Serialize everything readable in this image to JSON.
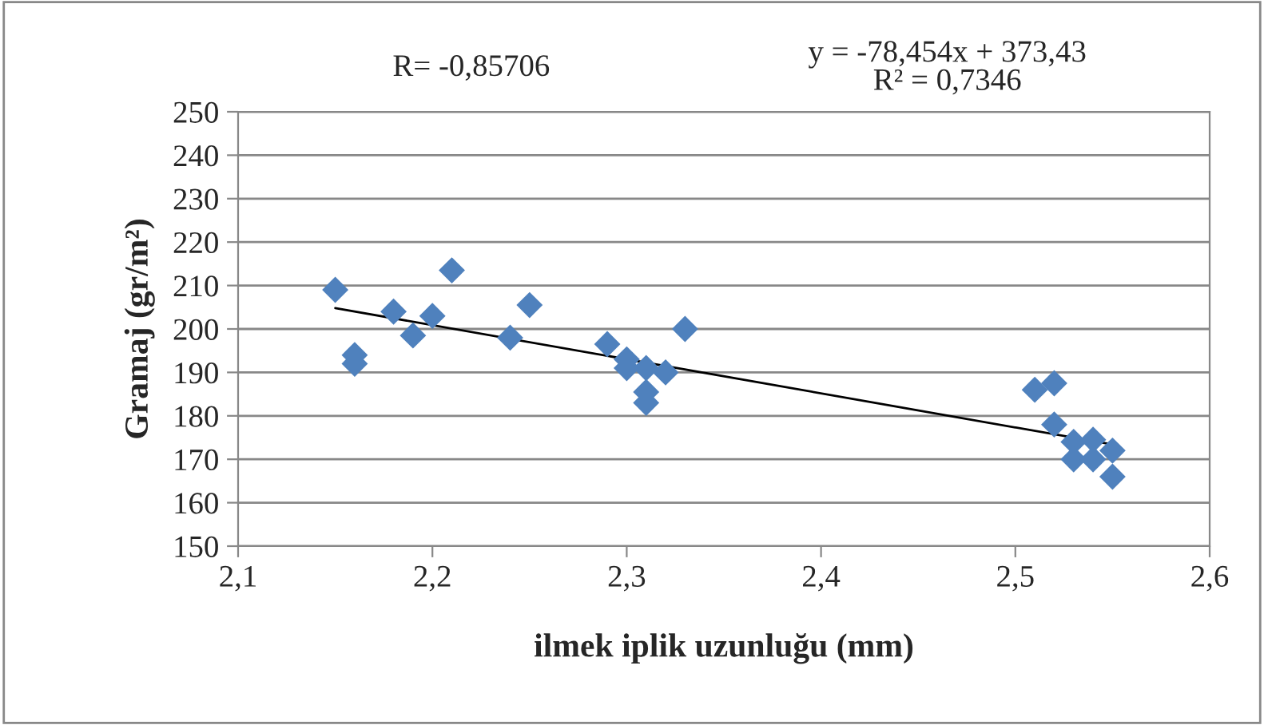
{
  "chart_data": {
    "type": "scatter",
    "xlabel": "ilmek iplik uzunluğu (mm)",
    "ylabel": "Gramaj (gr/m²)",
    "annotations": [
      "R= -0,85706",
      "y = -78,454x + 373,43\nR² = 0,7346"
    ],
    "series": [
      {
        "color": "#4f81bd",
        "marker": "diamond",
        "x": [
          2.15,
          2.16,
          2.16,
          2.18,
          2.19,
          2.2,
          2.21,
          2.24,
          2.25,
          2.29,
          2.3,
          2.3,
          2.31,
          2.31,
          2.31,
          2.32,
          2.33,
          2.51,
          2.52,
          2.52,
          2.53,
          2.53,
          2.54,
          2.54,
          2.55,
          2.55
        ],
        "values": [
          209,
          194,
          192,
          204,
          198.5,
          203,
          213.5,
          198,
          205.5,
          196.5,
          193,
          191,
          191,
          185.5,
          183,
          190,
          200,
          186,
          187.5,
          178,
          174,
          170,
          174.5,
          170,
          172,
          166
        ]
      },
      {
        "type": "line",
        "color": "#000000",
        "marker": "none",
        "x": [
          2.15,
          2.55
        ],
        "values": [
          204.8,
          173.4
        ]
      }
    ],
    "xlim": [
      2.1,
      2.6
    ],
    "xticks": [
      {
        "value": 2.1,
        "label": "2,1"
      },
      {
        "value": 2.2,
        "label": "2,2"
      },
      {
        "value": 2.3,
        "label": "2,3"
      },
      {
        "value": 2.4,
        "label": "2,4"
      },
      {
        "value": 2.5,
        "label": "2,5"
      },
      {
        "value": 2.6,
        "label": "2,6"
      }
    ],
    "ylim": [
      150,
      250
    ],
    "yticks": [
      150,
      160,
      170,
      180,
      190,
      200,
      210,
      220,
      230,
      240,
      250
    ],
    "grid": "y",
    "legend": false
  }
}
